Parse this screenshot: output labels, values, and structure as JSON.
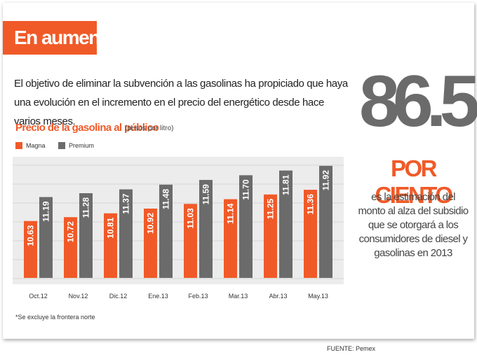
{
  "header": {
    "title": "En aumento"
  },
  "intro": {
    "text": "El objetivo de eliminar la subvención a las gasolinas ha propiciado que haya una evolución en el incremento en el precio del energético desde hace varios meses."
  },
  "highlight": {
    "number": "86.5",
    "unit": "POR CIENTO",
    "description": "es la estimación del monto al alza del subsidio que se otorgará a los consumidores de diesel y gasolinas en 2013"
  },
  "chart_data": {
    "type": "bar",
    "title": "Precio de la gasolina al público",
    "units_note": "(pesos por litro)",
    "categories": [
      "Oct.12",
      "Nov.12",
      "Dic.12",
      "Ene.13",
      "Feb.13",
      "Mar.13",
      "Abr.13",
      "May.13"
    ],
    "series": [
      {
        "name": "Magna",
        "color": "#f05a28",
        "values": [
          10.63,
          10.72,
          10.81,
          10.92,
          11.03,
          11.14,
          11.25,
          11.36
        ]
      },
      {
        "name": "Premium",
        "color": "#6b6b6b",
        "values": [
          11.19,
          11.28,
          11.37,
          11.48,
          11.59,
          11.7,
          11.81,
          11.92
        ]
      }
    ],
    "data_labels": [
      [
        "10.63",
        "10.72",
        "10.81",
        "10.92",
        "11.03",
        "11.14",
        "11.25",
        "11.36"
      ],
      [
        "11.19",
        "11.28",
        "11.37",
        "11.48",
        "11.59",
        "11.70",
        "11.81",
        "11.92"
      ]
    ],
    "grid": true,
    "legend_position": "top-left"
  },
  "footnote": "*Se excluye la frontera norte",
  "source": "FUENTE: Pemex"
}
